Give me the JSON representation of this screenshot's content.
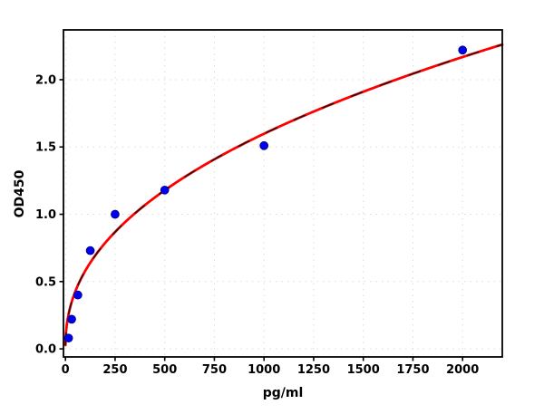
{
  "chart_data": {
    "type": "scatter",
    "title": "",
    "xlabel": "pg/ml",
    "ylabel": "OD450",
    "x": [
      15.6,
      31.25,
      62.5,
      125,
      250,
      500,
      1000,
      2000
    ],
    "y": [
      0.08,
      0.22,
      0.4,
      0.73,
      1.0,
      1.18,
      1.51,
      2.22
    ],
    "fit": {
      "type": "power",
      "formula": "y = a * x^b",
      "a": 0.0765,
      "b": 0.44,
      "x_start": 0.1,
      "x_end": 2200
    },
    "xlim": [
      -10,
      2200
    ],
    "ylim": [
      -0.06,
      2.37
    ],
    "xticks": {
      "values": [
        0,
        250,
        500,
        750,
        1000,
        1250,
        1500,
        1750,
        2000
      ],
      "labels": [
        "0",
        "250",
        "500",
        "750",
        "1000",
        "1250",
        "1500",
        "1750",
        "2000"
      ]
    },
    "yticks": {
      "values": [
        0,
        0.5,
        1,
        1.5,
        2
      ],
      "labels": [
        "0.0",
        "0.5",
        "1.0",
        "1.5",
        "2.0"
      ]
    },
    "grid": {
      "visible": true,
      "style": "dotted",
      "color": "#dcdcdc"
    },
    "legend_visible": false,
    "colors": {
      "marker": "#0000f0",
      "marker_edge": "#00008b",
      "fit_line": "#ff0000",
      "fit_dash_overlay": "#111111",
      "axis": "#000000",
      "background": "#ffffff"
    }
  }
}
